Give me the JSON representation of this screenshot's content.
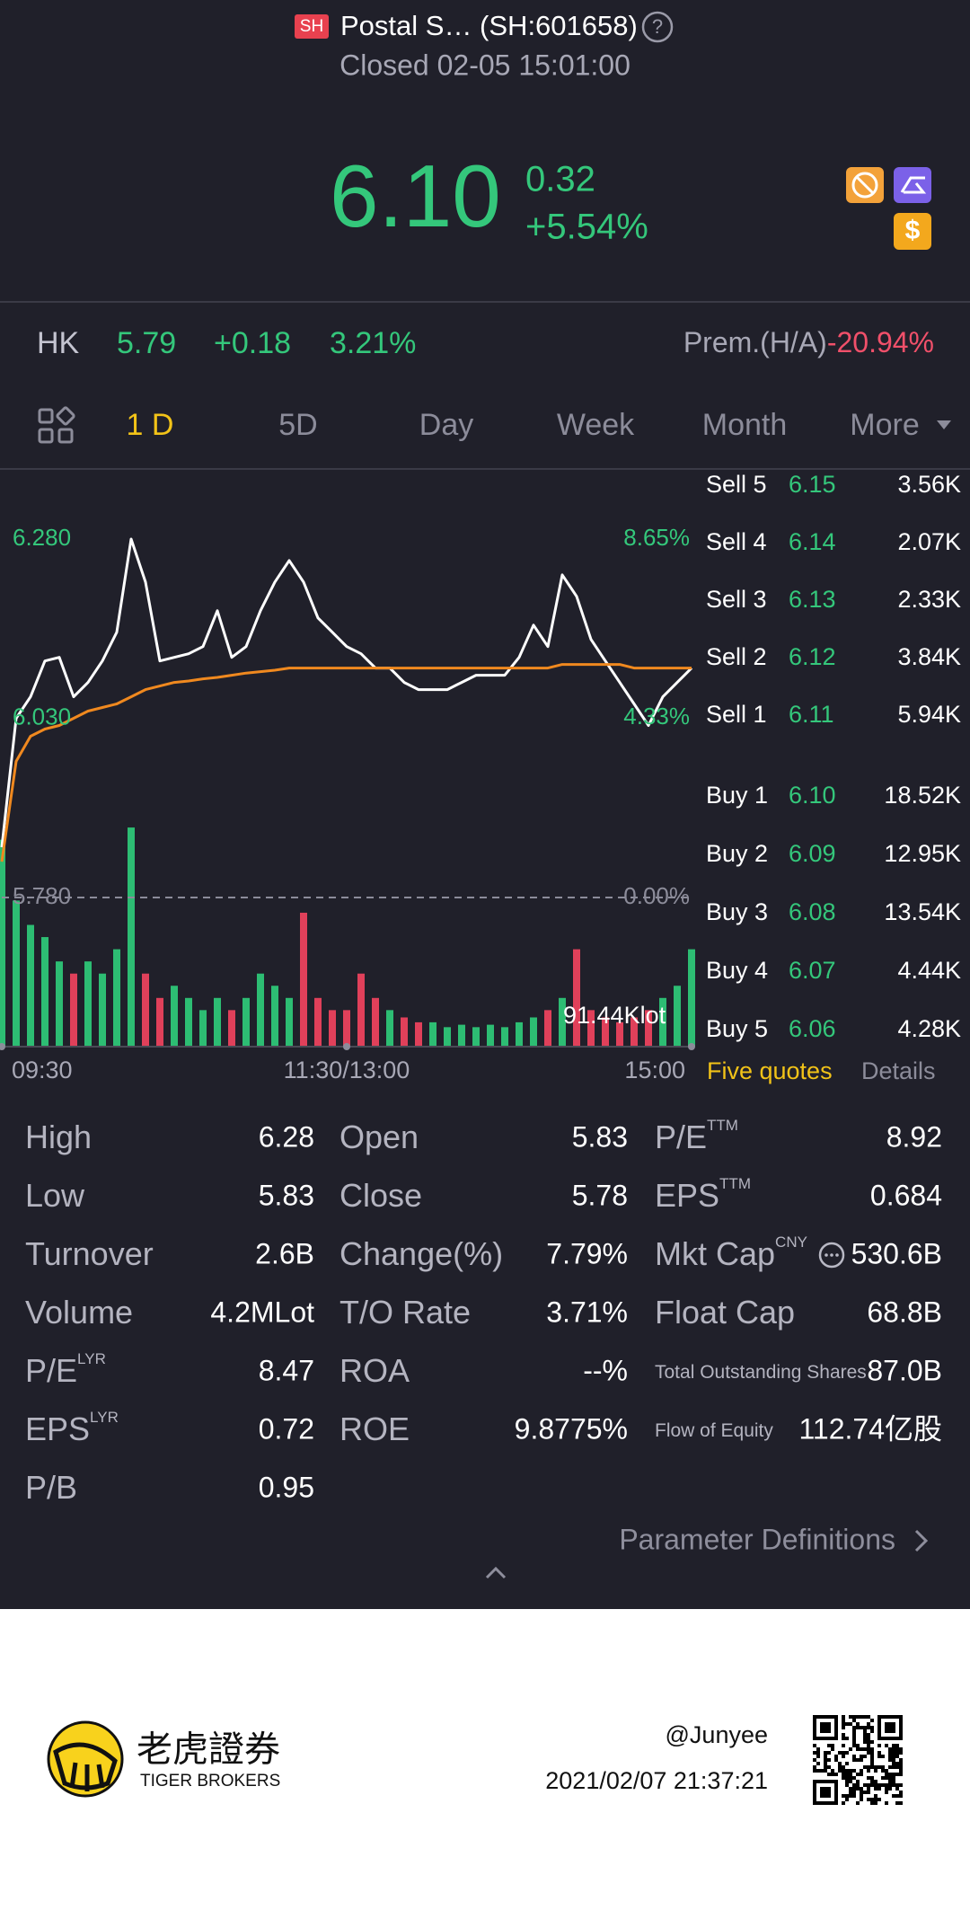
{
  "header": {
    "badge": "SH",
    "title": "Postal S… (SH:601658)",
    "help": "?",
    "status": "Closed 02-05 15:01:00"
  },
  "quote": {
    "price": "6.10",
    "change": "0.32",
    "change_percent": "+5.54%"
  },
  "hk": {
    "label": "HK",
    "price": "5.79",
    "change": "+0.18",
    "change_percent": "3.21%",
    "premium_label": "Prem.(H/A)",
    "premium": "-20.94%"
  },
  "tabs": [
    "1 D",
    "5D",
    "Day",
    "Week",
    "Month",
    "More"
  ],
  "chart_data": {
    "type": "line",
    "x": [
      0,
      5,
      10,
      15,
      20,
      25,
      30,
      35,
      40,
      45,
      50,
      55,
      60,
      65,
      70,
      75,
      80,
      85,
      90,
      95,
      100,
      105,
      110,
      115,
      120,
      125,
      130,
      135,
      140,
      145,
      150,
      155,
      160,
      165,
      170,
      175,
      180,
      185,
      190,
      195,
      200,
      205,
      210,
      215,
      220,
      225,
      230,
      235,
      240
    ],
    "xlim": [
      0,
      240
    ],
    "xticks": [
      {
        "value": 0,
        "label": "09:30"
      },
      {
        "value": 120,
        "label": "11:30/13:00"
      },
      {
        "value": 240,
        "label": "15:00"
      }
    ],
    "ylim": [
      5.78,
      6.28
    ],
    "yticks": [
      {
        "value": 5.78,
        "label": "5.780"
      },
      {
        "value": 6.03,
        "label": "6.030"
      },
      {
        "value": 6.28,
        "label": "6.280"
      }
    ],
    "y2lim": [
      0,
      8.65
    ],
    "y2ticks": [
      {
        "value": 0,
        "label": "0.00%"
      },
      {
        "value": 4.33,
        "label": "4.33%"
      },
      {
        "value": 8.65,
        "label": "8.65%"
      }
    ],
    "series": [
      {
        "color": "#ffffff",
        "values": [
          5.85,
          6.03,
          6.06,
          6.11,
          6.115,
          6.06,
          6.08,
          6.11,
          6.15,
          6.28,
          6.22,
          6.11,
          6.115,
          6.12,
          6.13,
          6.18,
          6.115,
          6.13,
          6.18,
          6.22,
          6.25,
          6.22,
          6.17,
          6.15,
          6.13,
          6.12,
          6.1,
          6.1,
          6.08,
          6.07,
          6.07,
          6.07,
          6.08,
          6.09,
          6.09,
          6.09,
          6.115,
          6.16,
          6.13,
          6.23,
          6.2,
          6.14,
          6.11,
          6.08,
          6.05,
          6.02,
          6.06,
          6.08,
          6.1
        ]
      },
      {
        "color": "#f0891f",
        "values": [
          5.83,
          5.97,
          6.005,
          6.015,
          6.02,
          6.03,
          6.04,
          6.045,
          6.05,
          6.06,
          6.07,
          6.075,
          6.08,
          6.082,
          6.085,
          6.087,
          6.09,
          6.093,
          6.095,
          6.097,
          6.1,
          6.1,
          6.1,
          6.1,
          6.1,
          6.1,
          6.1,
          6.1,
          6.1,
          6.1,
          6.1,
          6.1,
          6.1,
          6.1,
          6.1,
          6.1,
          6.1,
          6.1,
          6.1,
          6.105,
          6.105,
          6.105,
          6.105,
          6.105,
          6.1,
          6.1,
          6.1,
          6.1,
          6.1
        ]
      }
    ],
    "volume": {
      "label": "91.44Klot",
      "ylim": [
        0,
        1000
      ],
      "up_color": "#2dbd73",
      "down_color": "#e0405a",
      "values": [
        850,
        600,
        500,
        450,
        350,
        300,
        350,
        300,
        400,
        900,
        300,
        200,
        250,
        200,
        150,
        200,
        150,
        200,
        300,
        250,
        200,
        550,
        200,
        150,
        150,
        300,
        200,
        150,
        120,
        100,
        100,
        80,
        90,
        80,
        90,
        80,
        100,
        120,
        150,
        200,
        400,
        150,
        120,
        100,
        120,
        150,
        200,
        250,
        400
      ]
    }
  },
  "order_book": {
    "sell": [
      {
        "label": "Sell 5",
        "price": "6.15",
        "size": "3.56K"
      },
      {
        "label": "Sell 4",
        "price": "6.14",
        "size": "2.07K"
      },
      {
        "label": "Sell 3",
        "price": "6.13",
        "size": "2.33K"
      },
      {
        "label": "Sell 2",
        "price": "6.12",
        "size": "3.84K"
      },
      {
        "label": "Sell 1",
        "price": "6.11",
        "size": "5.94K"
      }
    ],
    "buy": [
      {
        "label": "Buy 1",
        "price": "6.10",
        "size": "18.52K"
      },
      {
        "label": "Buy 2",
        "price": "6.09",
        "size": "12.95K"
      },
      {
        "label": "Buy 3",
        "price": "6.08",
        "size": "13.54K"
      },
      {
        "label": "Buy 4",
        "price": "6.07",
        "size": "4.44K"
      },
      {
        "label": "Buy 5",
        "price": "6.06",
        "size": "4.28K"
      }
    ],
    "tabs": [
      "Five quotes",
      "Details"
    ]
  },
  "stats": [
    [
      {
        "label": "High",
        "value": "6.28"
      },
      {
        "label": "Low",
        "value": "5.83"
      },
      {
        "label": "Turnover",
        "value": "2.6B"
      },
      {
        "label": "Volume",
        "value": "4.2MLot"
      },
      {
        "label": "P/E",
        "sup": "LYR",
        "value": "8.47"
      },
      {
        "label": "EPS",
        "sup": "LYR",
        "value": "0.72"
      },
      {
        "label": "P/B",
        "value": "0.95"
      }
    ],
    [
      {
        "label": "Open",
        "value": "5.83"
      },
      {
        "label": "Close",
        "value": "5.78"
      },
      {
        "label": "Change(%)",
        "value": "7.79%"
      },
      {
        "label": "T/O Rate",
        "value": "3.71%"
      },
      {
        "label": "ROA",
        "value": "--%"
      },
      {
        "label": "ROE",
        "value": "9.8775%"
      }
    ],
    [
      {
        "label": "P/E",
        "sup": "TTM",
        "value": "8.92"
      },
      {
        "label": "EPS",
        "sup": "TTM",
        "value": "0.684"
      },
      {
        "label": "Mkt Cap",
        "sup": "CNY",
        "value": "530.6B"
      },
      {
        "label": "Float Cap",
        "value": "68.8B"
      },
      {
        "label": "Total Outstanding Shares",
        "value": "87.0B"
      },
      {
        "label": "Flow of Equity",
        "value": "112.74亿股"
      }
    ]
  ],
  "parameter_link": "Parameter Definitions",
  "footer": {
    "brand": "老虎證券",
    "brand_en": "TIGER BROKERS",
    "user": "@Junyee",
    "timestamp": "2021/02/07 21:37:21"
  }
}
